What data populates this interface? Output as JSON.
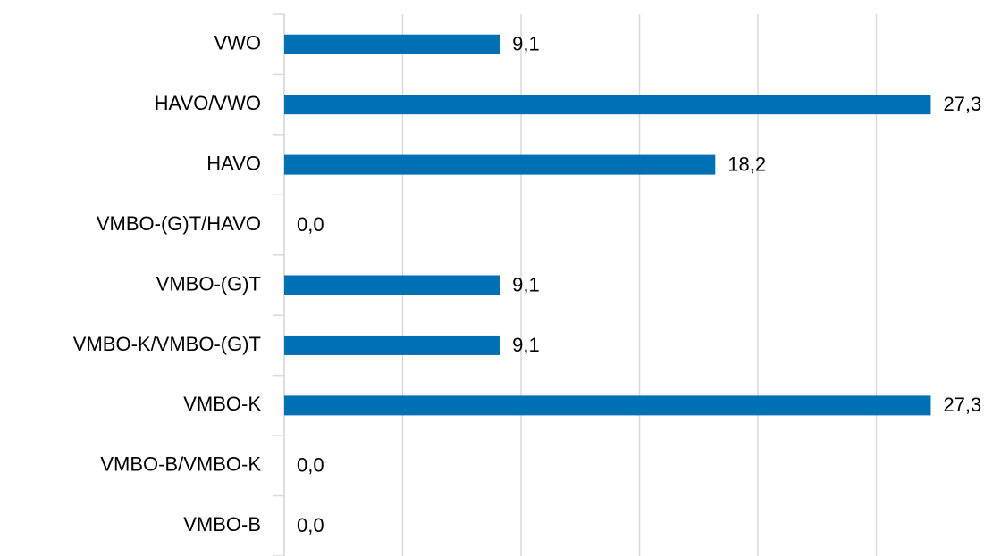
{
  "chart_data": {
    "type": "bar",
    "orientation": "horizontal",
    "categories": [
      "VWO",
      "HAVO/VWO",
      "HAVO",
      "VMBO-(G)T/HAVO",
      "VMBO-(G)T",
      "VMBO-K/VMBO-(G)T",
      "VMBO-K",
      "VMBO-B/VMBO-K",
      "VMBO-B"
    ],
    "values": [
      9.1,
      27.3,
      18.2,
      0.0,
      9.1,
      9.1,
      27.3,
      0.0,
      0.0
    ],
    "value_labels": [
      "9,1",
      "27,3",
      "18,2",
      "0,0",
      "9,1",
      "9,1",
      "27,3",
      "0,0",
      "0,0"
    ],
    "color": "#0070b4",
    "xlim": [
      0,
      30
    ],
    "xticks": [
      0,
      5,
      10,
      15,
      20,
      25
    ],
    "grid": true
  }
}
